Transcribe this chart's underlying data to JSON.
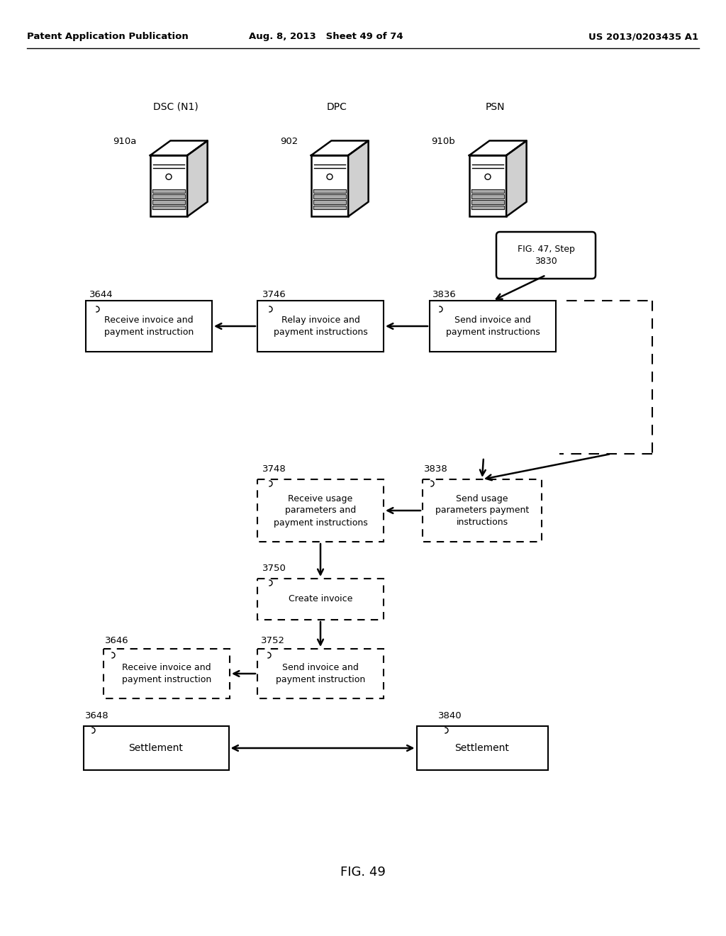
{
  "header_left": "Patent Application Publication",
  "header_mid": "Aug. 8, 2013   Sheet 49 of 74",
  "header_right": "US 2013/0203435 A1",
  "fig_label": "FIG. 49",
  "bg_color": "#ffffff"
}
